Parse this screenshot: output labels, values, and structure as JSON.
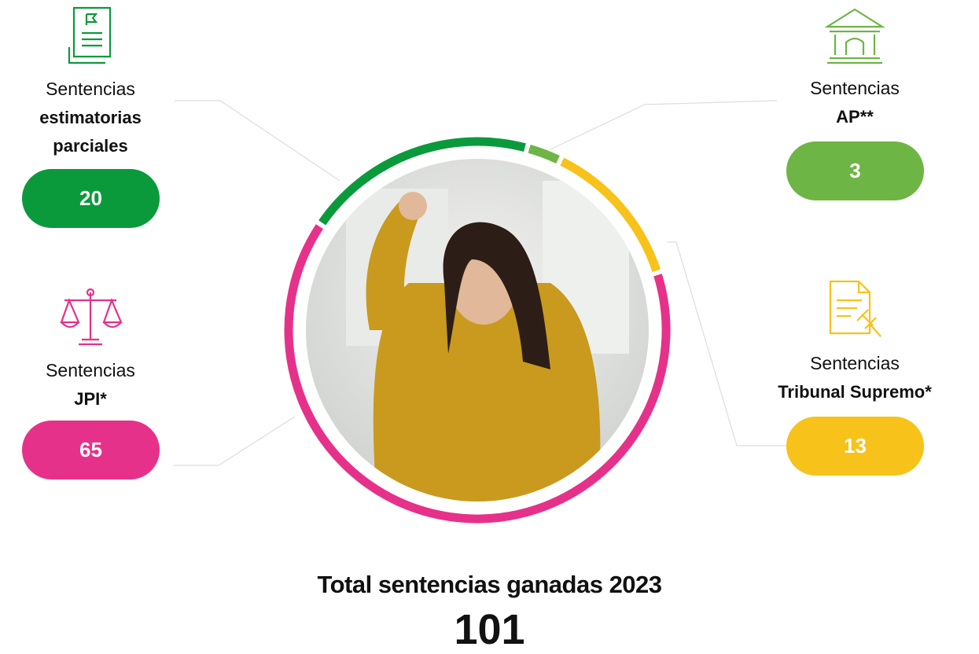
{
  "chart_data": {
    "type": "donut",
    "title": "Total sentencias ganadas 2023",
    "total": 101,
    "label_prefix": "Sentencias",
    "categories": [
      "estimatorias parciales",
      "AP**",
      "Tribunal Supremo*",
      "JPI*"
    ],
    "values": [
      20,
      3,
      13,
      65
    ],
    "colors": [
      "#0a9a3c",
      "#6db544",
      "#f7c21a",
      "#e6318a"
    ]
  }
}
